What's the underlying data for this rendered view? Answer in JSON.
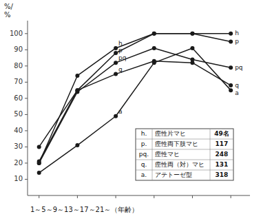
{
  "chart_data": {
    "type": "line",
    "color": "#1a1a1a",
    "marker": "circle",
    "grid": false,
    "tick_labels": "y",
    "x": [
      0,
      1,
      2,
      3,
      4,
      5
    ],
    "xlim": [
      -0.3,
      5.5
    ],
    "xticks": [
      0,
      1,
      2,
      3,
      4,
      5
    ],
    "ylim": [
      0,
      108
    ],
    "yticks": [
      10,
      20,
      30,
      40,
      50,
      60,
      70,
      80,
      90,
      100
    ],
    "x_label": "1～5～9～13～17～21～（年齢）",
    "annotations": [
      "%/",
      "%"
    ],
    "series": [
      {
        "name": "h",
        "values": [
          20,
          74,
          91,
          100,
          100,
          100
        ]
      },
      {
        "name": "p",
        "values": [
          21,
          65,
          88,
          100,
          100,
          95
        ]
      },
      {
        "name": "pq",
        "values": [
          20,
          64,
          82,
          91,
          84,
          79
        ]
      },
      {
        "name": "q",
        "values": [
          30,
          65,
          75,
          83,
          82,
          68
        ]
      },
      {
        "name": "a",
        "values": [
          14,
          31,
          49,
          82,
          91,
          65
        ]
      }
    ],
    "table": [
      [
        "h.",
        "痓性片マヒ",
        "49名"
      ],
      [
        "p.",
        "痓性両下肢マヒ",
        "117"
      ],
      [
        "pq.",
        "痓性マヒ",
        "248"
      ],
      [
        "q.",
        "痓性両（対）マヒ",
        "131"
      ],
      [
        "a.",
        "アテトーゼ型",
        "318"
      ]
    ]
  }
}
